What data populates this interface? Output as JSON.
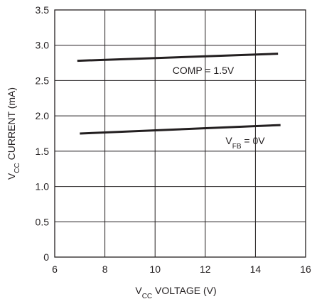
{
  "chart_data": {
    "type": "line",
    "xlabel": {
      "prefix": "V",
      "sub": "CC",
      "suffix": " VOLTAGE (V)"
    },
    "ylabel": {
      "prefix": "V",
      "sub": "CC",
      "suffix": " CURRENT (mA)"
    },
    "xlim": [
      6,
      16
    ],
    "ylim": [
      0,
      3.5
    ],
    "x_ticks": [
      "6",
      "8",
      "10",
      "12",
      "14",
      "16"
    ],
    "y_ticks": [
      "0",
      "0.5",
      "1.0",
      "1.5",
      "2.0",
      "2.5",
      "3.0",
      "3.5"
    ],
    "grid": true,
    "series": [
      {
        "name": "COMP = 1.5V",
        "label": {
          "prefix": "COMP = 1.5V",
          "sub": "",
          "suffix": ""
        },
        "x": [
          6.9,
          14.9
        ],
        "y": [
          2.78,
          2.88
        ]
      },
      {
        "name": "VFB = 0V",
        "label": {
          "prefix": "V",
          "sub": "FB",
          "suffix": " = 0V"
        },
        "x": [
          7.0,
          15.0
        ],
        "y": [
          1.75,
          1.87
        ]
      }
    ]
  }
}
